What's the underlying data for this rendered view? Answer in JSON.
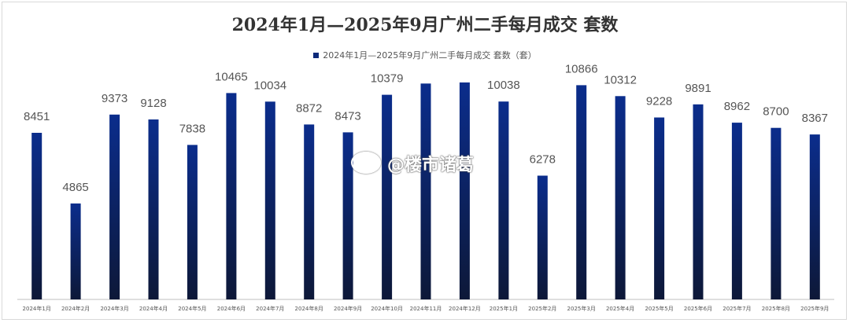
{
  "chart_data": {
    "type": "bar",
    "title": "2024年1月—2025年9月广州二手每月成交 套数",
    "legend": "2024年1月—2025年9月广州二手每月成交 套数（套）",
    "categories": [
      "2024年1月",
      "2024年2月",
      "2024年3月",
      "2024年4月",
      "2024年5月",
      "2024年6月",
      "2024年7月",
      "2024年8月",
      "2024年9月",
      "2024年10月",
      "2024年11月",
      "2024年12月",
      "2025年1月",
      "2025年2月",
      "2025年3月",
      "2025年4月",
      "2025年5月",
      "2025年6月",
      "2025年7月",
      "2025年8月",
      "2025年9月"
    ],
    "values": [
      8451,
      4865,
      9373,
      9128,
      7838,
      10465,
      10034,
      8872,
      8473,
      10379,
      10950,
      11004,
      10038,
      6278,
      10866,
      10312,
      9228,
      9891,
      8962,
      8700,
      8367
    ],
    "value_labels": [
      "8451",
      "4865",
      "9373",
      "9128",
      "7838",
      "10465",
      "10034",
      "8872",
      "8473",
      "10379",
      "",
      "",
      "10038",
      "6278",
      "10866",
      "10312",
      "9228",
      "9891",
      "8962",
      "8700",
      "8367"
    ],
    "ylim": [
      0,
      11200
    ],
    "colors": {
      "bar_top": "#0b2d8c",
      "bar_bottom": "#0d1838"
    }
  },
  "watermark": "@楼市诸葛"
}
